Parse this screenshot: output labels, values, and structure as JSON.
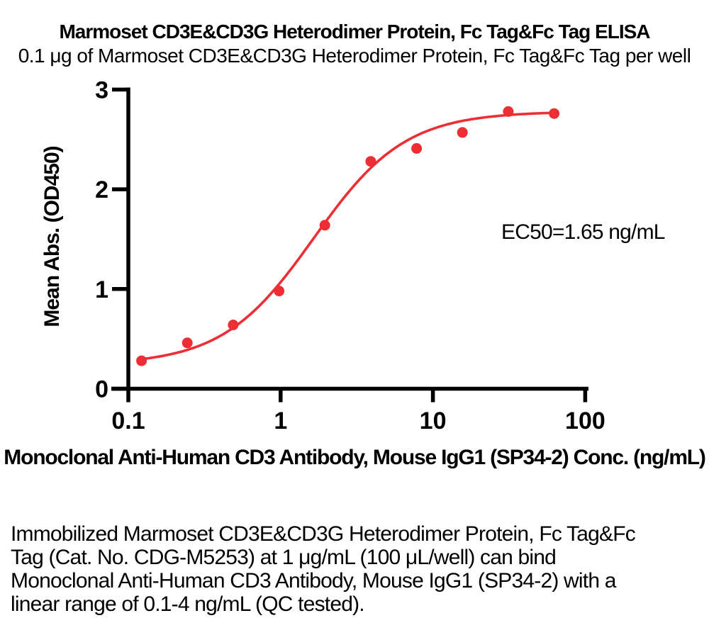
{
  "header": {
    "title": "Marmoset CD3E&CD3G Heterodimer Protein, Fc Tag&Fc Tag ELISA",
    "subtitle": "0.1 μg of Marmoset CD3E&CD3G Heterodimer Protein, Fc Tag&Fc Tag per well"
  },
  "chart_data": {
    "type": "scatter",
    "x_scale": "log",
    "x": [
      0.122,
      0.244,
      0.488,
      0.977,
      1.953,
      3.906,
      7.813,
      15.625,
      31.25,
      62.5
    ],
    "y": [
      0.28,
      0.46,
      0.64,
      0.98,
      1.64,
      2.28,
      2.41,
      2.57,
      2.78,
      2.76
    ],
    "curve": {
      "model": "4PL",
      "bottom": 0.24,
      "top": 2.78,
      "ec50": 1.65,
      "hill": 1.45
    },
    "annotation": "EC50=1.65 ng/mL",
    "xlabel": "Monoclonal Anti-Human CD3 Antibody, Mouse IgG1 (SP34-2) Conc. (ng/mL)",
    "ylabel": "Mean Abs. (OD450)",
    "xlim": [
      0.1,
      100
    ],
    "ylim": [
      0,
      3
    ],
    "x_ticks": [
      0.1,
      1,
      10,
      100
    ],
    "y_ticks": [
      0,
      1,
      2,
      3
    ],
    "grid": false,
    "legend": "none",
    "point_color": "#ed2e35",
    "curve_color": "#ed2e35",
    "axis_color": "#000000"
  },
  "footer": {
    "description": "Immobilized Marmoset CD3E&CD3G Heterodimer Protein, Fc Tag&Fc\nTag (Cat. No. CDG-M5253) at 1 μg/mL (100 μL/well) can bind\nMonoclonal Anti-Human CD3 Antibody, Mouse IgG1 (SP34-2) with a\nlinear range of 0.1-4 ng/mL (QC tested)."
  }
}
